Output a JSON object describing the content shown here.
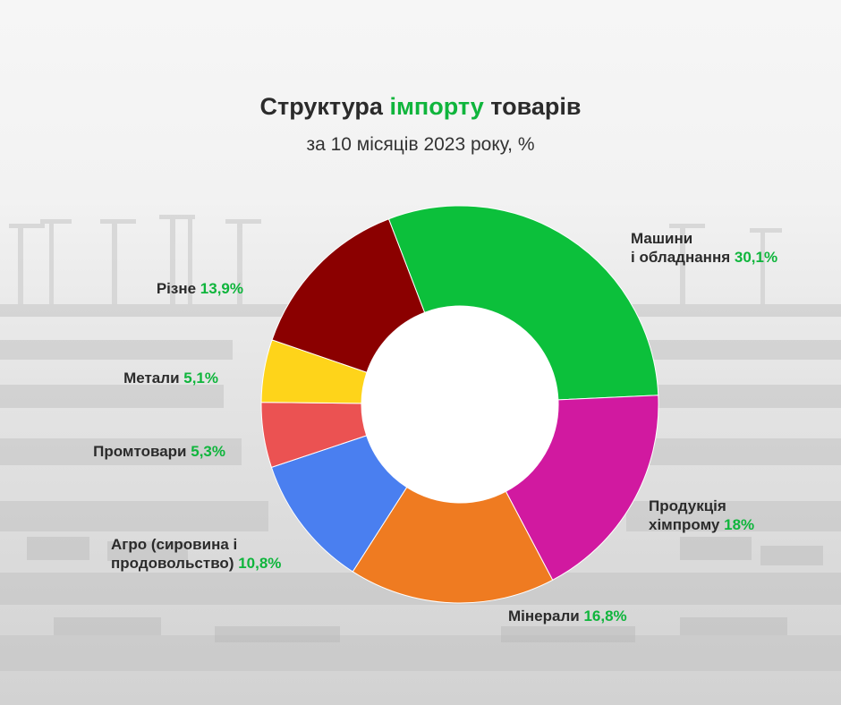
{
  "header": {
    "title_part1": "Структура",
    "title_highlight": "імпорту",
    "title_part2": "товарів",
    "subtitle": "за 10 місяців 2023 року, %"
  },
  "colors": {
    "accent": "#0fb53c",
    "background": "#f3f3f3"
  },
  "chart_data": {
    "type": "pie",
    "variant": "donut",
    "title": "Структура імпорту товарів",
    "subtitle": "за 10 місяців 2023 року, %",
    "slices": [
      {
        "label_line1": "Машини",
        "label_line2": "і обладнання",
        "value": 30.1,
        "value_label": "30,1%",
        "color": "#0cc03b"
      },
      {
        "label_line1": "Продукція",
        "label_line2": "хімпрому",
        "value": 18.0,
        "value_label": "18%",
        "color": "#d119a0"
      },
      {
        "label_line1": "Мінерали",
        "label_line2": "",
        "value": 16.8,
        "value_label": "16,8%",
        "color": "#ef7b21"
      },
      {
        "label_line1": "Агро (сировина і",
        "label_line2": "продовольство)",
        "value": 10.8,
        "value_label": "10,8%",
        "color": "#4a7ff0"
      },
      {
        "label_line1": "Промтовари",
        "label_line2": "",
        "value": 5.3,
        "value_label": "5,3%",
        "color": "#eb5252"
      },
      {
        "label_line1": "Метали",
        "label_line2": "",
        "value": 5.1,
        "value_label": "5,1%",
        "color": "#fed41a"
      },
      {
        "label_line1": "Різне",
        "label_line2": "",
        "value": 13.9,
        "value_label": "13,9%",
        "color": "#8b0000"
      }
    ]
  }
}
